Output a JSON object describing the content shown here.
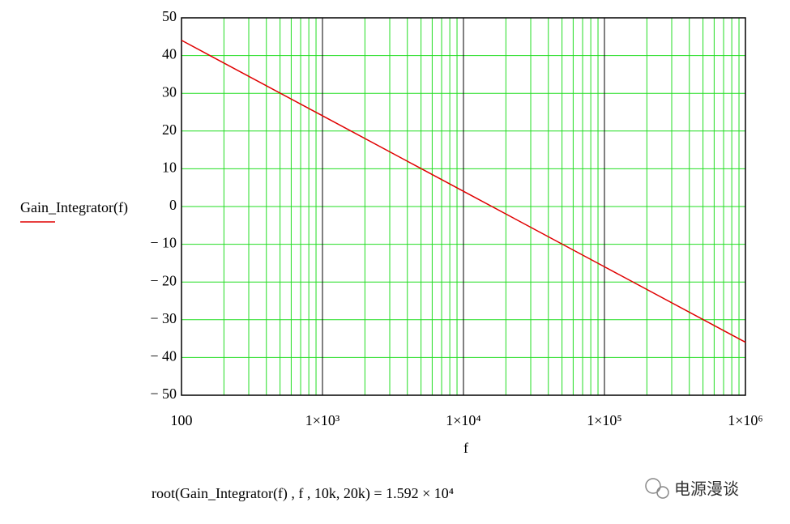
{
  "chart_data": {
    "type": "line",
    "xlabel": "f",
    "x": [
      100,
      1000,
      10000,
      100000,
      1000000
    ],
    "series": [
      {
        "name": "Gain_Integrator(f)",
        "color": "#e00000",
        "values": [
          44.04,
          24.04,
          4.04,
          -15.96,
          -35.96
        ]
      }
    ],
    "xscale": "log",
    "xlim": [
      100,
      1000000
    ],
    "xticks": [
      100,
      {
        "value": 1000,
        "label": "1×10³"
      },
      {
        "value": 10000,
        "label": "1×10⁴"
      },
      {
        "value": 100000,
        "label": "1×10⁵"
      },
      {
        "value": 1000000,
        "label": "1×10⁶"
      }
    ],
    "x_minor_grid": [
      200,
      300,
      400,
      500,
      600,
      700,
      800,
      900,
      2000,
      3000,
      4000,
      5000,
      6000,
      7000,
      8000,
      9000,
      20000,
      30000,
      40000,
      50000,
      60000,
      70000,
      80000,
      90000,
      200000,
      300000,
      400000,
      500000,
      600000,
      700000,
      800000,
      900000
    ],
    "ylim": [
      -50,
      50
    ],
    "yticks": [
      50,
      40,
      30,
      20,
      10,
      0,
      {
        "value": -10,
        "label": "− 10"
      },
      {
        "value": -20,
        "label": "− 20"
      },
      {
        "value": -30,
        "label": "− 30"
      },
      {
        "value": -40,
        "label": "− 40"
      },
      {
        "value": -50,
        "label": "− 50"
      }
    ],
    "grid": true,
    "grid_color": "#22dd22",
    "major_grid_color": "#000000",
    "legend": "left",
    "annotations": [
      "root(Gain_Integrator(f) , f , 10k, 20k) = 1.592 × 10⁴",
      "电源漫谈"
    ]
  }
}
